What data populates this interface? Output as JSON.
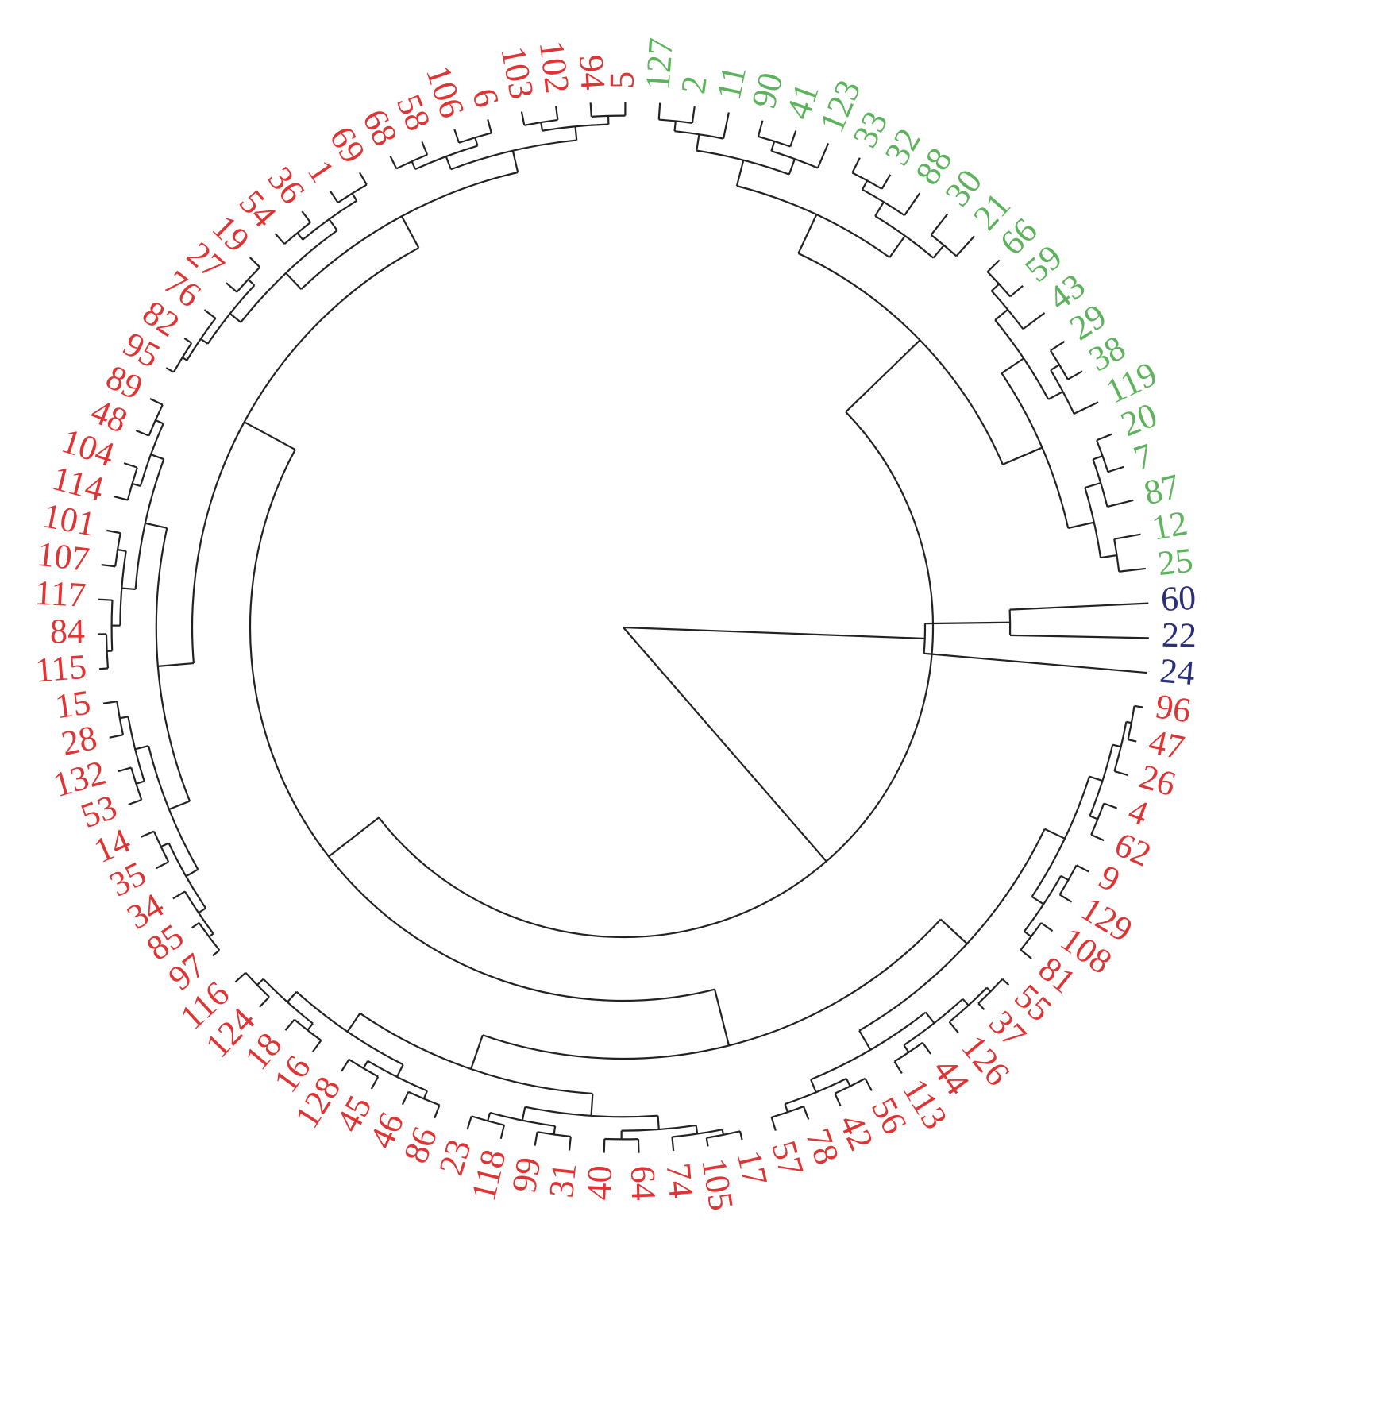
{
  "clusters": [
    {
      "color": "#5cb35c",
      "leaves": [
        "127",
        "2",
        "11",
        "90",
        "41",
        "123",
        "33",
        "32",
        "88",
        "30",
        "21",
        "66",
        "59",
        "43",
        "29",
        "38",
        "119",
        "20",
        "7",
        "87",
        "12",
        "25"
      ]
    },
    {
      "color": "#2b2f7a",
      "leaves": [
        "60",
        "22",
        "24"
      ]
    },
    {
      "color": "#e03333",
      "leaves": [
        "96",
        "47",
        "26",
        "4",
        "62",
        "9",
        "129",
        "108",
        "81",
        "55",
        "37",
        "126",
        "44",
        "113",
        "56",
        "42",
        "78",
        "57",
        "17",
        "105",
        "74",
        "64",
        "40",
        "31",
        "99",
        "118",
        "23",
        "86",
        "46",
        "45",
        "128",
        "16",
        "18",
        "124",
        "116",
        "97",
        "85",
        "34",
        "35",
        "14",
        "53",
        "132",
        "28",
        "15",
        "115",
        "84",
        "117",
        "107",
        "101",
        "114",
        "104",
        "48",
        "89",
        "95",
        "82",
        "76",
        "27",
        "19",
        "54",
        "36",
        "1",
        "69",
        "68",
        "58",
        "106",
        "6",
        "103",
        "102",
        "94",
        "5"
      ]
    }
  ]
}
